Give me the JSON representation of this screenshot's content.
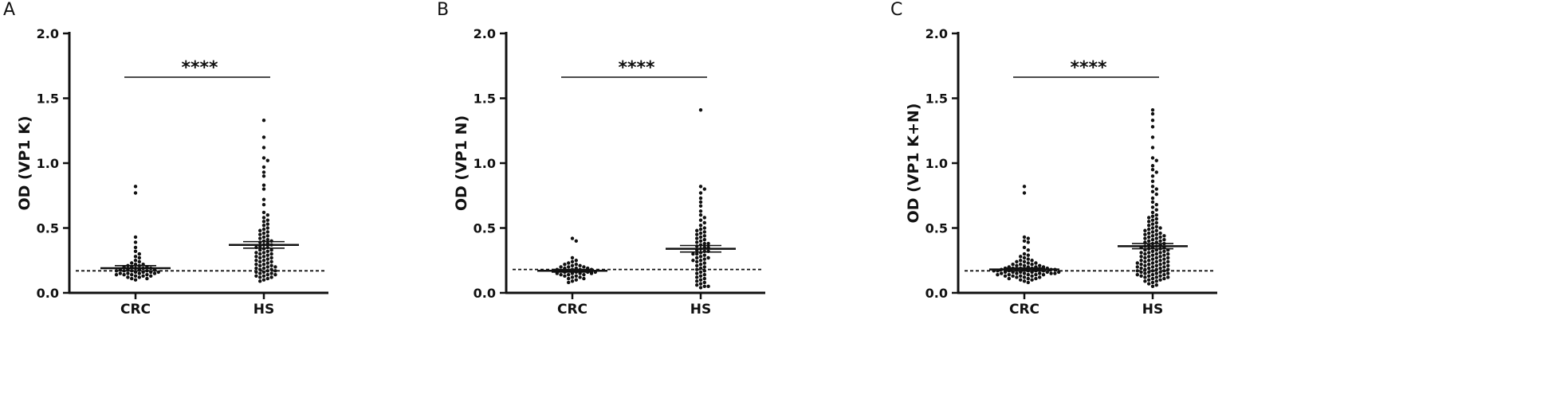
{
  "chart_data": [
    {
      "type": "scatter",
      "panel_letter": "A",
      "ylabel": "OD (VP1 K)",
      "categories": [
        "CRC",
        "HS"
      ],
      "ylim": [
        0,
        2.0
      ],
      "yticks": [
        "0.0",
        "0.5",
        "1.0",
        "1.5",
        "2.0"
      ],
      "yticks_values": [
        0,
        0.5,
        1.0,
        1.5,
        2.0
      ],
      "cutoff": 0.17,
      "significance": "****",
      "series": [
        {
          "values": [
            0.82,
            0.77,
            0.43,
            0.39,
            0.35,
            0.32,
            0.3,
            0.28,
            0.27,
            0.25,
            0.24,
            0.23,
            0.22,
            0.22,
            0.21,
            0.21,
            0.2,
            0.2,
            0.2,
            0.19,
            0.19,
            0.19,
            0.18,
            0.18,
            0.18,
            0.18,
            0.17,
            0.17,
            0.17,
            0.17,
            0.16,
            0.16,
            0.16,
            0.16,
            0.15,
            0.15,
            0.15,
            0.15,
            0.14,
            0.14,
            0.14,
            0.14,
            0.13,
            0.13,
            0.13,
            0.12,
            0.12,
            0.11,
            0.11,
            0.1
          ],
          "mean": 0.19,
          "sem": 0.02
        },
        {
          "values": [
            1.33,
            1.2,
            1.12,
            1.04,
            1.02,
            0.97,
            0.93,
            0.9,
            0.83,
            0.8,
            0.72,
            0.68,
            0.62,
            0.6,
            0.58,
            0.56,
            0.55,
            0.53,
            0.52,
            0.5,
            0.49,
            0.48,
            0.47,
            0.46,
            0.45,
            0.44,
            0.43,
            0.42,
            0.41,
            0.4,
            0.4,
            0.39,
            0.38,
            0.37,
            0.37,
            0.36,
            0.35,
            0.35,
            0.34,
            0.33,
            0.33,
            0.32,
            0.31,
            0.31,
            0.3,
            0.3,
            0.29,
            0.28,
            0.28,
            0.27,
            0.27,
            0.26,
            0.25,
            0.25,
            0.24,
            0.24,
            0.23,
            0.22,
            0.22,
            0.21,
            0.21,
            0.2,
            0.2,
            0.19,
            0.19,
            0.18,
            0.18,
            0.17,
            0.17,
            0.16,
            0.16,
            0.15,
            0.15,
            0.14,
            0.14,
            0.13,
            0.13,
            0.12,
            0.12,
            0.11,
            0.1,
            0.09
          ],
          "mean": 0.37,
          "sem": 0.025
        }
      ]
    },
    {
      "type": "scatter",
      "panel_letter": "B",
      "ylabel": "OD (VP1 N)",
      "categories": [
        "CRC",
        "HS"
      ],
      "ylim": [
        0,
        2.0
      ],
      "yticks": [
        "0.0",
        "0.5",
        "1.0",
        "1.5",
        "2.0"
      ],
      "yticks_values": [
        0,
        0.5,
        1.0,
        1.5,
        2.0
      ],
      "cutoff": 0.18,
      "significance": "****",
      "series": [
        {
          "values": [
            0.42,
            0.4,
            0.27,
            0.25,
            0.24,
            0.23,
            0.22,
            0.22,
            0.21,
            0.21,
            0.2,
            0.2,
            0.2,
            0.19,
            0.19,
            0.19,
            0.18,
            0.18,
            0.18,
            0.18,
            0.17,
            0.17,
            0.17,
            0.17,
            0.16,
            0.16,
            0.16,
            0.16,
            0.15,
            0.15,
            0.15,
            0.15,
            0.14,
            0.14,
            0.14,
            0.13,
            0.13,
            0.12,
            0.12,
            0.11,
            0.11,
            0.1,
            0.09,
            0.08
          ],
          "mean": 0.17,
          "sem": 0.01
        },
        {
          "values": [
            1.41,
            0.82,
            0.8,
            0.77,
            0.73,
            0.7,
            0.67,
            0.63,
            0.6,
            0.58,
            0.56,
            0.54,
            0.52,
            0.5,
            0.49,
            0.48,
            0.47,
            0.46,
            0.45,
            0.44,
            0.43,
            0.42,
            0.41,
            0.4,
            0.39,
            0.38,
            0.38,
            0.37,
            0.36,
            0.35,
            0.35,
            0.34,
            0.33,
            0.32,
            0.32,
            0.31,
            0.3,
            0.3,
            0.29,
            0.28,
            0.27,
            0.27,
            0.26,
            0.25,
            0.25,
            0.24,
            0.23,
            0.22,
            0.21,
            0.2,
            0.19,
            0.18,
            0.17,
            0.16,
            0.15,
            0.14,
            0.13,
            0.12,
            0.11,
            0.1,
            0.09,
            0.08,
            0.07,
            0.06,
            0.05,
            0.05,
            0.04
          ],
          "mean": 0.34,
          "sem": 0.025
        }
      ]
    },
    {
      "type": "scatter",
      "panel_letter": "C",
      "ylabel": "OD (VP1 K+N)",
      "categories": [
        "CRC",
        "HS"
      ],
      "ylim": [
        0,
        2.0
      ],
      "yticks": [
        "0.0",
        "0.5",
        "1.0",
        "1.5",
        "2.0"
      ],
      "yticks_values": [
        0,
        0.5,
        1.0,
        1.5,
        2.0
      ],
      "cutoff": 0.17,
      "significance": "****",
      "series": [
        {
          "values": [
            0.82,
            0.77,
            0.43,
            0.42,
            0.4,
            0.39,
            0.35,
            0.33,
            0.3,
            0.29,
            0.28,
            0.27,
            0.26,
            0.25,
            0.25,
            0.24,
            0.24,
            0.23,
            0.23,
            0.22,
            0.22,
            0.22,
            0.21,
            0.21,
            0.21,
            0.2,
            0.2,
            0.2,
            0.2,
            0.19,
            0.19,
            0.19,
            0.19,
            0.19,
            0.18,
            0.18,
            0.18,
            0.18,
            0.18,
            0.18,
            0.17,
            0.17,
            0.17,
            0.17,
            0.17,
            0.17,
            0.16,
            0.16,
            0.16,
            0.16,
            0.16,
            0.16,
            0.15,
            0.15,
            0.15,
            0.15,
            0.15,
            0.15,
            0.14,
            0.14,
            0.14,
            0.14,
            0.14,
            0.13,
            0.13,
            0.13,
            0.13,
            0.12,
            0.12,
            0.12,
            0.11,
            0.11,
            0.11,
            0.1,
            0.1,
            0.09,
            0.08
          ],
          "mean": 0.18,
          "sem": 0.012
        },
        {
          "values": [
            1.41,
            1.38,
            1.33,
            1.28,
            1.2,
            1.12,
            1.04,
            1.02,
            0.98,
            0.95,
            0.93,
            0.9,
            0.86,
            0.82,
            0.8,
            0.78,
            0.76,
            0.73,
            0.7,
            0.68,
            0.66,
            0.64,
            0.62,
            0.6,
            0.59,
            0.58,
            0.57,
            0.56,
            0.55,
            0.54,
            0.53,
            0.52,
            0.51,
            0.5,
            0.5,
            0.49,
            0.48,
            0.48,
            0.47,
            0.46,
            0.46,
            0.45,
            0.45,
            0.44,
            0.44,
            0.43,
            0.43,
            0.42,
            0.42,
            0.41,
            0.41,
            0.4,
            0.4,
            0.39,
            0.39,
            0.38,
            0.38,
            0.37,
            0.37,
            0.36,
            0.36,
            0.35,
            0.35,
            0.35,
            0.34,
            0.34,
            0.33,
            0.33,
            0.33,
            0.32,
            0.32,
            0.31,
            0.31,
            0.31,
            0.3,
            0.3,
            0.3,
            0.29,
            0.29,
            0.28,
            0.28,
            0.28,
            0.27,
            0.27,
            0.27,
            0.26,
            0.26,
            0.25,
            0.25,
            0.25,
            0.24,
            0.24,
            0.24,
            0.23,
            0.23,
            0.23,
            0.22,
            0.22,
            0.22,
            0.21,
            0.21,
            0.21,
            0.2,
            0.2,
            0.2,
            0.19,
            0.19,
            0.19,
            0.18,
            0.18,
            0.18,
            0.17,
            0.17,
            0.17,
            0.16,
            0.16,
            0.16,
            0.15,
            0.15,
            0.15,
            0.14,
            0.14,
            0.14,
            0.13,
            0.13,
            0.13,
            0.12,
            0.12,
            0.12,
            0.11,
            0.11,
            0.1,
            0.1,
            0.09,
            0.09,
            0.08,
            0.07,
            0.06,
            0.05
          ],
          "mean": 0.36,
          "sem": 0.02
        }
      ]
    }
  ]
}
